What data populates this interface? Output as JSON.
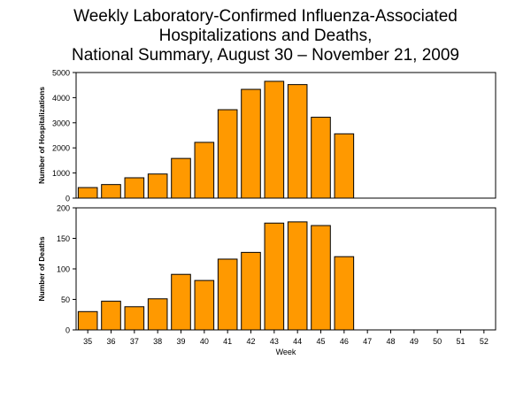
{
  "title_lines": [
    "Weekly Laboratory-Confirmed Influenza-Associated",
    "Hospitalizations and Deaths,",
    "National Summary, August 30 – November 21, 2009"
  ],
  "colors": {
    "bar": "#ff9900",
    "bar_stroke": "#000000",
    "axis": "#000000",
    "background": "#ffffff"
  },
  "chart_data": [
    {
      "type": "bar",
      "xlabel": "",
      "ylabel": "Number of Hospitalizations",
      "ylim": [
        0,
        5000
      ],
      "yticks": [
        "0",
        "1000",
        "2000",
        "3000",
        "4000",
        "5000"
      ],
      "categories": [
        "35",
        "36",
        "37",
        "38",
        "39",
        "40",
        "41",
        "42",
        "43",
        "44",
        "45",
        "46",
        "47",
        "48",
        "49",
        "50",
        "51",
        "52"
      ],
      "values": [
        420,
        540,
        810,
        960,
        1580,
        2220,
        3520,
        4330,
        4650,
        4520,
        3220,
        2560,
        null,
        null,
        null,
        null,
        null,
        null
      ],
      "grid": false
    },
    {
      "type": "bar",
      "xlabel": "Week",
      "ylabel": "Number of Deaths",
      "ylim": [
        0,
        200
      ],
      "yticks": [
        "0",
        "50",
        "100",
        "150",
        "200"
      ],
      "categories": [
        "35",
        "36",
        "37",
        "38",
        "39",
        "40",
        "41",
        "42",
        "43",
        "44",
        "45",
        "46",
        "47",
        "48",
        "49",
        "50",
        "51",
        "52"
      ],
      "values": [
        30,
        47,
        38,
        51,
        91,
        81,
        116,
        127,
        175,
        177,
        171,
        120,
        null,
        null,
        null,
        null,
        null,
        null
      ],
      "grid": false
    }
  ]
}
